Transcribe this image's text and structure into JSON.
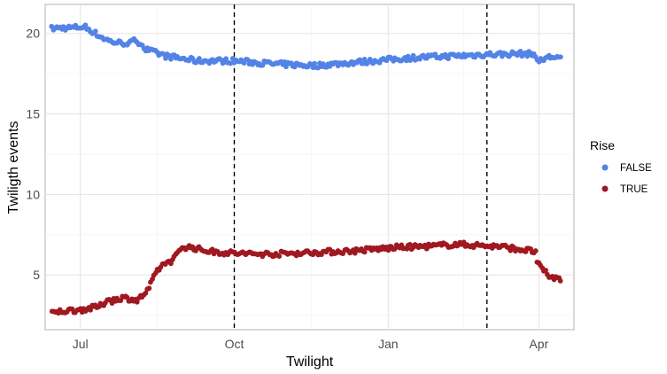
{
  "chart_data": {
    "type": "scatter",
    "xlabel": "Twilight",
    "ylabel": "Twiligth events",
    "x_axis": {
      "type": "date",
      "range": [
        "2022-06-10",
        "2023-04-22"
      ],
      "ticks": [
        {
          "date": "2022-07-01",
          "label": "Jul"
        },
        {
          "date": "2022-10-01",
          "label": "Oct"
        },
        {
          "date": "2023-01-01",
          "label": "Jan"
        },
        {
          "date": "2023-04-01",
          "label": "Apr"
        }
      ]
    },
    "y_axis": {
      "range": [
        1.6,
        21.8
      ],
      "ticks": [
        5,
        10,
        15,
        20
      ]
    },
    "grid": true,
    "vlines": [
      {
        "date": "2022-10-01",
        "style": "dashed",
        "color": "#000000"
      },
      {
        "date": "2023-03-01",
        "style": "dashed",
        "color": "#000000"
      }
    ],
    "legend": {
      "title": "Rise",
      "placement": "right",
      "entries": [
        {
          "label": "FALSE",
          "color": "#5383e6"
        },
        {
          "label": "TRUE",
          "color": "#a01820"
        }
      ]
    },
    "series": [
      {
        "name": "FALSE",
        "color": "#5383e6",
        "points": [
          [
            "2022-06-14",
            20.3
          ],
          [
            "2022-06-20",
            20.35
          ],
          [
            "2022-06-26",
            20.35
          ],
          [
            "2022-07-01",
            20.4
          ],
          [
            "2022-07-04",
            20.4
          ],
          [
            "2022-07-07",
            20.2
          ],
          [
            "2022-07-10",
            20.0
          ],
          [
            "2022-07-13",
            19.8
          ],
          [
            "2022-07-19",
            19.5
          ],
          [
            "2022-07-25",
            19.4
          ],
          [
            "2022-07-31",
            19.4
          ],
          [
            "2022-08-03",
            19.6
          ],
          [
            "2022-08-06",
            19.4
          ],
          [
            "2022-08-09",
            19.0
          ],
          [
            "2022-08-15",
            18.8
          ],
          [
            "2022-08-21",
            18.6
          ],
          [
            "2022-08-27",
            18.5
          ],
          [
            "2022-09-02",
            18.4
          ],
          [
            "2022-09-08",
            18.3
          ],
          [
            "2022-09-14",
            18.3
          ],
          [
            "2022-09-20",
            18.3
          ],
          [
            "2022-09-26",
            18.3
          ],
          [
            "2022-10-01",
            18.3
          ],
          [
            "2022-10-13",
            18.2
          ],
          [
            "2022-10-25",
            18.1
          ],
          [
            "2022-11-06",
            18.05
          ],
          [
            "2022-11-18",
            18.0
          ],
          [
            "2022-11-30",
            18.1
          ],
          [
            "2022-12-12",
            18.2
          ],
          [
            "2022-12-24",
            18.3
          ],
          [
            "2023-01-05",
            18.4
          ],
          [
            "2023-01-17",
            18.5
          ],
          [
            "2023-01-29",
            18.55
          ],
          [
            "2023-02-10",
            18.6
          ],
          [
            "2023-02-22",
            18.65
          ],
          [
            "2023-03-01",
            18.7
          ],
          [
            "2023-03-10",
            18.7
          ],
          [
            "2023-03-20",
            18.75
          ],
          [
            "2023-03-30",
            18.7
          ],
          [
            "2023-03-31",
            18.3
          ],
          [
            "2023-04-03",
            18.3
          ],
          [
            "2023-04-05",
            18.5
          ],
          [
            "2023-04-10",
            18.55
          ],
          [
            "2023-04-14",
            18.5
          ]
        ]
      },
      {
        "name": "TRUE",
        "color": "#a01820",
        "points": [
          [
            "2022-06-14",
            2.6
          ],
          [
            "2022-06-20",
            2.75
          ],
          [
            "2022-06-26",
            2.8
          ],
          [
            "2022-07-02",
            2.85
          ],
          [
            "2022-07-08",
            2.95
          ],
          [
            "2022-07-14",
            3.1
          ],
          [
            "2022-07-17",
            3.5
          ],
          [
            "2022-07-20",
            3.4
          ],
          [
            "2022-07-26",
            3.6
          ],
          [
            "2022-08-01",
            3.5
          ],
          [
            "2022-08-04",
            3.4
          ],
          [
            "2022-08-07",
            3.7
          ],
          [
            "2022-08-10",
            4.0
          ],
          [
            "2022-08-13",
            4.6
          ],
          [
            "2022-08-16",
            5.3
          ],
          [
            "2022-08-19",
            5.6
          ],
          [
            "2022-08-22",
            5.8
          ],
          [
            "2022-08-25",
            5.9
          ],
          [
            "2022-08-28",
            6.3
          ],
          [
            "2022-08-31",
            6.75
          ],
          [
            "2022-09-06",
            6.7
          ],
          [
            "2022-09-12",
            6.55
          ],
          [
            "2022-09-18",
            6.45
          ],
          [
            "2022-09-24",
            6.4
          ],
          [
            "2022-10-01",
            6.35
          ],
          [
            "2022-10-13",
            6.3
          ],
          [
            "2022-10-25",
            6.3
          ],
          [
            "2022-11-06",
            6.35
          ],
          [
            "2022-11-18",
            6.4
          ],
          [
            "2022-11-30",
            6.45
          ],
          [
            "2022-12-12",
            6.5
          ],
          [
            "2022-12-24",
            6.6
          ],
          [
            "2023-01-05",
            6.7
          ],
          [
            "2023-01-17",
            6.75
          ],
          [
            "2023-01-29",
            6.8
          ],
          [
            "2023-02-10",
            6.9
          ],
          [
            "2023-02-22",
            6.85
          ],
          [
            "2023-03-01",
            6.8
          ],
          [
            "2023-03-10",
            6.75
          ],
          [
            "2023-03-20",
            6.6
          ],
          [
            "2023-03-30",
            6.45
          ],
          [
            "2023-03-31",
            5.7
          ],
          [
            "2023-04-03",
            5.4
          ],
          [
            "2023-04-06",
            5.0
          ],
          [
            "2023-04-10",
            4.8
          ],
          [
            "2023-04-14",
            4.75
          ]
        ]
      }
    ]
  }
}
